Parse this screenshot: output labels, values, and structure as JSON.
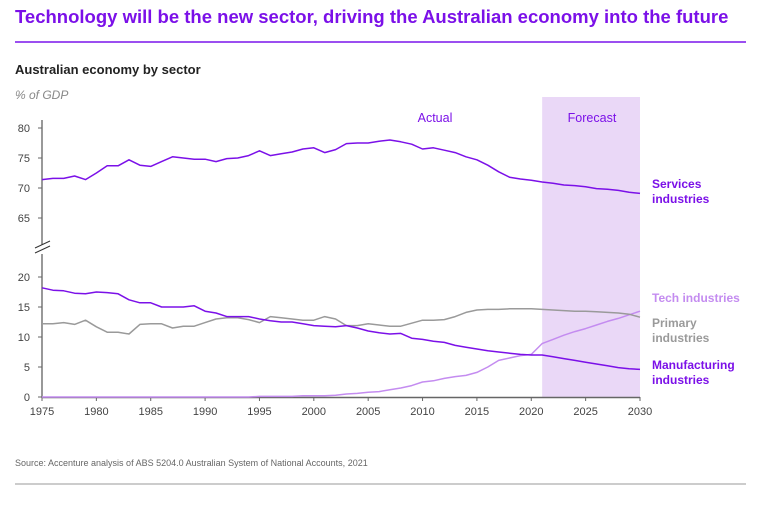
{
  "header": {
    "title": "Technology will be the new sector, driving the Australian economy into the future",
    "accent_color": "#7b10e8"
  },
  "footer": {
    "source": "Source: Accenture analysis of ABS 5204.0 Australian System of National Accounts, 2021"
  },
  "chart_data": {
    "type": "line",
    "title": "Australian economy by sector",
    "ylabel": "% of GDP",
    "xlabel": "",
    "xlim": [
      1975,
      2030
    ],
    "ylim_upper": [
      60,
      80
    ],
    "ylim_lower": [
      0,
      20
    ],
    "broken_y_axis": true,
    "grid": false,
    "x_ticks": [
      "1975",
      "1980",
      "1985",
      "1990",
      "1995",
      "2000",
      "2005",
      "2010",
      "2015",
      "2020",
      "2025",
      "2030"
    ],
    "y_ticks_upper": [
      "80",
      "75",
      "70",
      "65"
    ],
    "y_ticks_lower": [
      "20",
      "15",
      "10",
      "5",
      "0"
    ],
    "annotations": {
      "actual": "Actual",
      "forecast": "Forecast"
    },
    "forecast_range": [
      2021,
      2030
    ],
    "forecast_color": "#ead8f7",
    "x": [
      1975,
      1976,
      1977,
      1978,
      1979,
      1980,
      1981,
      1982,
      1983,
      1984,
      1985,
      1986,
      1987,
      1988,
      1989,
      1990,
      1991,
      1992,
      1993,
      1994,
      1995,
      1996,
      1997,
      1998,
      1999,
      2000,
      2001,
      2002,
      2003,
      2004,
      2005,
      2006,
      2007,
      2008,
      2009,
      2010,
      2011,
      2012,
      2013,
      2014,
      2015,
      2016,
      2017,
      2018,
      2019,
      2020,
      2021,
      2022,
      2023,
      2024,
      2025,
      2026,
      2027,
      2028,
      2029,
      2030
    ],
    "series": [
      {
        "name": "Services industries",
        "label_lines": [
          "Services",
          "industries"
        ],
        "color": "#7b10e8",
        "panel": "upper",
        "values": [
          71.4,
          71.6,
          71.6,
          72.0,
          71.4,
          72.5,
          73.7,
          73.7,
          74.7,
          73.8,
          73.6,
          74.4,
          75.2,
          75.0,
          74.8,
          74.8,
          74.4,
          74.9,
          75.0,
          75.4,
          76.2,
          75.4,
          75.7,
          76.0,
          76.5,
          76.7,
          75.9,
          76.4,
          77.4,
          77.5,
          77.5,
          77.8,
          78.0,
          77.7,
          77.3,
          76.5,
          76.7,
          76.3,
          75.9,
          75.2,
          74.7,
          73.8,
          72.7,
          71.8,
          71.5,
          71.3,
          71.0,
          70.8,
          70.5,
          70.4,
          70.2,
          69.9,
          69.8,
          69.6,
          69.3,
          69.1
        ]
      },
      {
        "name": "Tech industries",
        "label_lines": [
          "Tech industries"
        ],
        "color": "#c48cf0",
        "panel": "lower",
        "values": [
          0,
          0,
          0,
          0,
          0,
          0,
          0,
          0,
          0,
          0,
          0,
          0,
          0,
          0,
          0,
          0,
          0,
          0,
          0,
          0,
          0.1,
          0.1,
          0.1,
          0.1,
          0.2,
          0.2,
          0.2,
          0.3,
          0.5,
          0.6,
          0.8,
          0.9,
          1.2,
          1.5,
          1.9,
          2.5,
          2.7,
          3.1,
          3.4,
          3.6,
          4.1,
          5.0,
          6.1,
          6.5,
          6.9,
          7.1,
          8.9,
          9.6,
          10.3,
          10.9,
          11.4,
          12.0,
          12.6,
          13.1,
          13.7,
          14.3
        ]
      },
      {
        "name": "Primary industries",
        "label_lines": [
          "Primary",
          "industries"
        ],
        "color": "#9a9a9a",
        "panel": "lower",
        "values": [
          12.2,
          12.2,
          12.4,
          12.1,
          12.8,
          11.7,
          10.8,
          10.8,
          10.5,
          12.1,
          12.2,
          12.2,
          11.5,
          11.8,
          11.8,
          12.4,
          13.0,
          13.2,
          13.2,
          12.9,
          12.4,
          13.4,
          13.2,
          13.0,
          12.8,
          12.8,
          13.4,
          13.0,
          11.9,
          11.9,
          12.2,
          12.0,
          11.8,
          11.8,
          12.3,
          12.8,
          12.8,
          12.9,
          13.4,
          14.1,
          14.5,
          14.6,
          14.6,
          14.7,
          14.7,
          14.7,
          14.6,
          14.5,
          14.4,
          14.3,
          14.3,
          14.2,
          14.1,
          14.0,
          13.8,
          13.3
        ]
      },
      {
        "name": "Manufacturing industries",
        "label_lines": [
          "Manufacturing",
          "industries"
        ],
        "color": "#7b10e8",
        "panel": "lower",
        "values": [
          18.2,
          17.8,
          17.7,
          17.3,
          17.2,
          17.5,
          17.4,
          17.2,
          16.2,
          15.7,
          15.7,
          15.0,
          15.0,
          15.0,
          15.2,
          14.3,
          14.0,
          13.4,
          13.4,
          13.4,
          13.0,
          12.7,
          12.5,
          12.5,
          12.2,
          11.9,
          11.8,
          11.7,
          11.9,
          11.5,
          11.0,
          10.7,
          10.5,
          10.6,
          9.8,
          9.6,
          9.3,
          9.1,
          8.6,
          8.3,
          8.0,
          7.7,
          7.5,
          7.3,
          7.1,
          7.0,
          7.0,
          6.7,
          6.4,
          6.1,
          5.8,
          5.5,
          5.2,
          4.9,
          4.7,
          4.6
        ]
      }
    ]
  }
}
